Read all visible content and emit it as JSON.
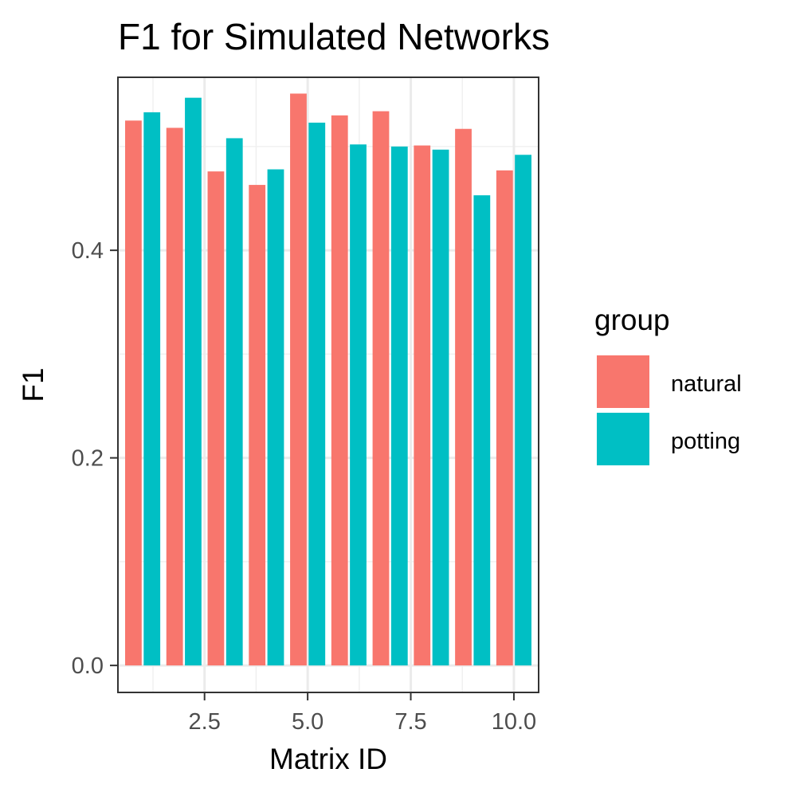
{
  "chart_data": {
    "type": "bar",
    "title": "F1 for Simulated Networks",
    "xlabel": "Matrix ID",
    "ylabel": "F1",
    "x": [
      1,
      2,
      3,
      4,
      5,
      6,
      7,
      8,
      9,
      10
    ],
    "xlim": [
      0.4,
      10.6
    ],
    "ylim": [
      -0.026,
      0.5667
    ],
    "x_ticks": [
      2.5,
      5.0,
      7.5,
      10.0
    ],
    "x_tick_labels": [
      "2.5",
      "5.0",
      "7.5",
      "10.0"
    ],
    "y_ticks": [
      0.0,
      0.2,
      0.4
    ],
    "y_tick_labels": [
      "0.0",
      "0.2",
      "0.4"
    ],
    "grid": true,
    "legend": {
      "title": "group",
      "position": "right"
    },
    "series": [
      {
        "name": "natural",
        "color": "#F8766D",
        "values": [
          0.525,
          0.518,
          0.476,
          0.463,
          0.551,
          0.53,
          0.534,
          0.501,
          0.517,
          0.477
        ]
      },
      {
        "name": "potting",
        "color": "#00BFC4",
        "values": [
          0.533,
          0.547,
          0.508,
          0.478,
          0.523,
          0.502,
          0.5,
          0.497,
          0.453,
          0.492
        ]
      }
    ]
  }
}
